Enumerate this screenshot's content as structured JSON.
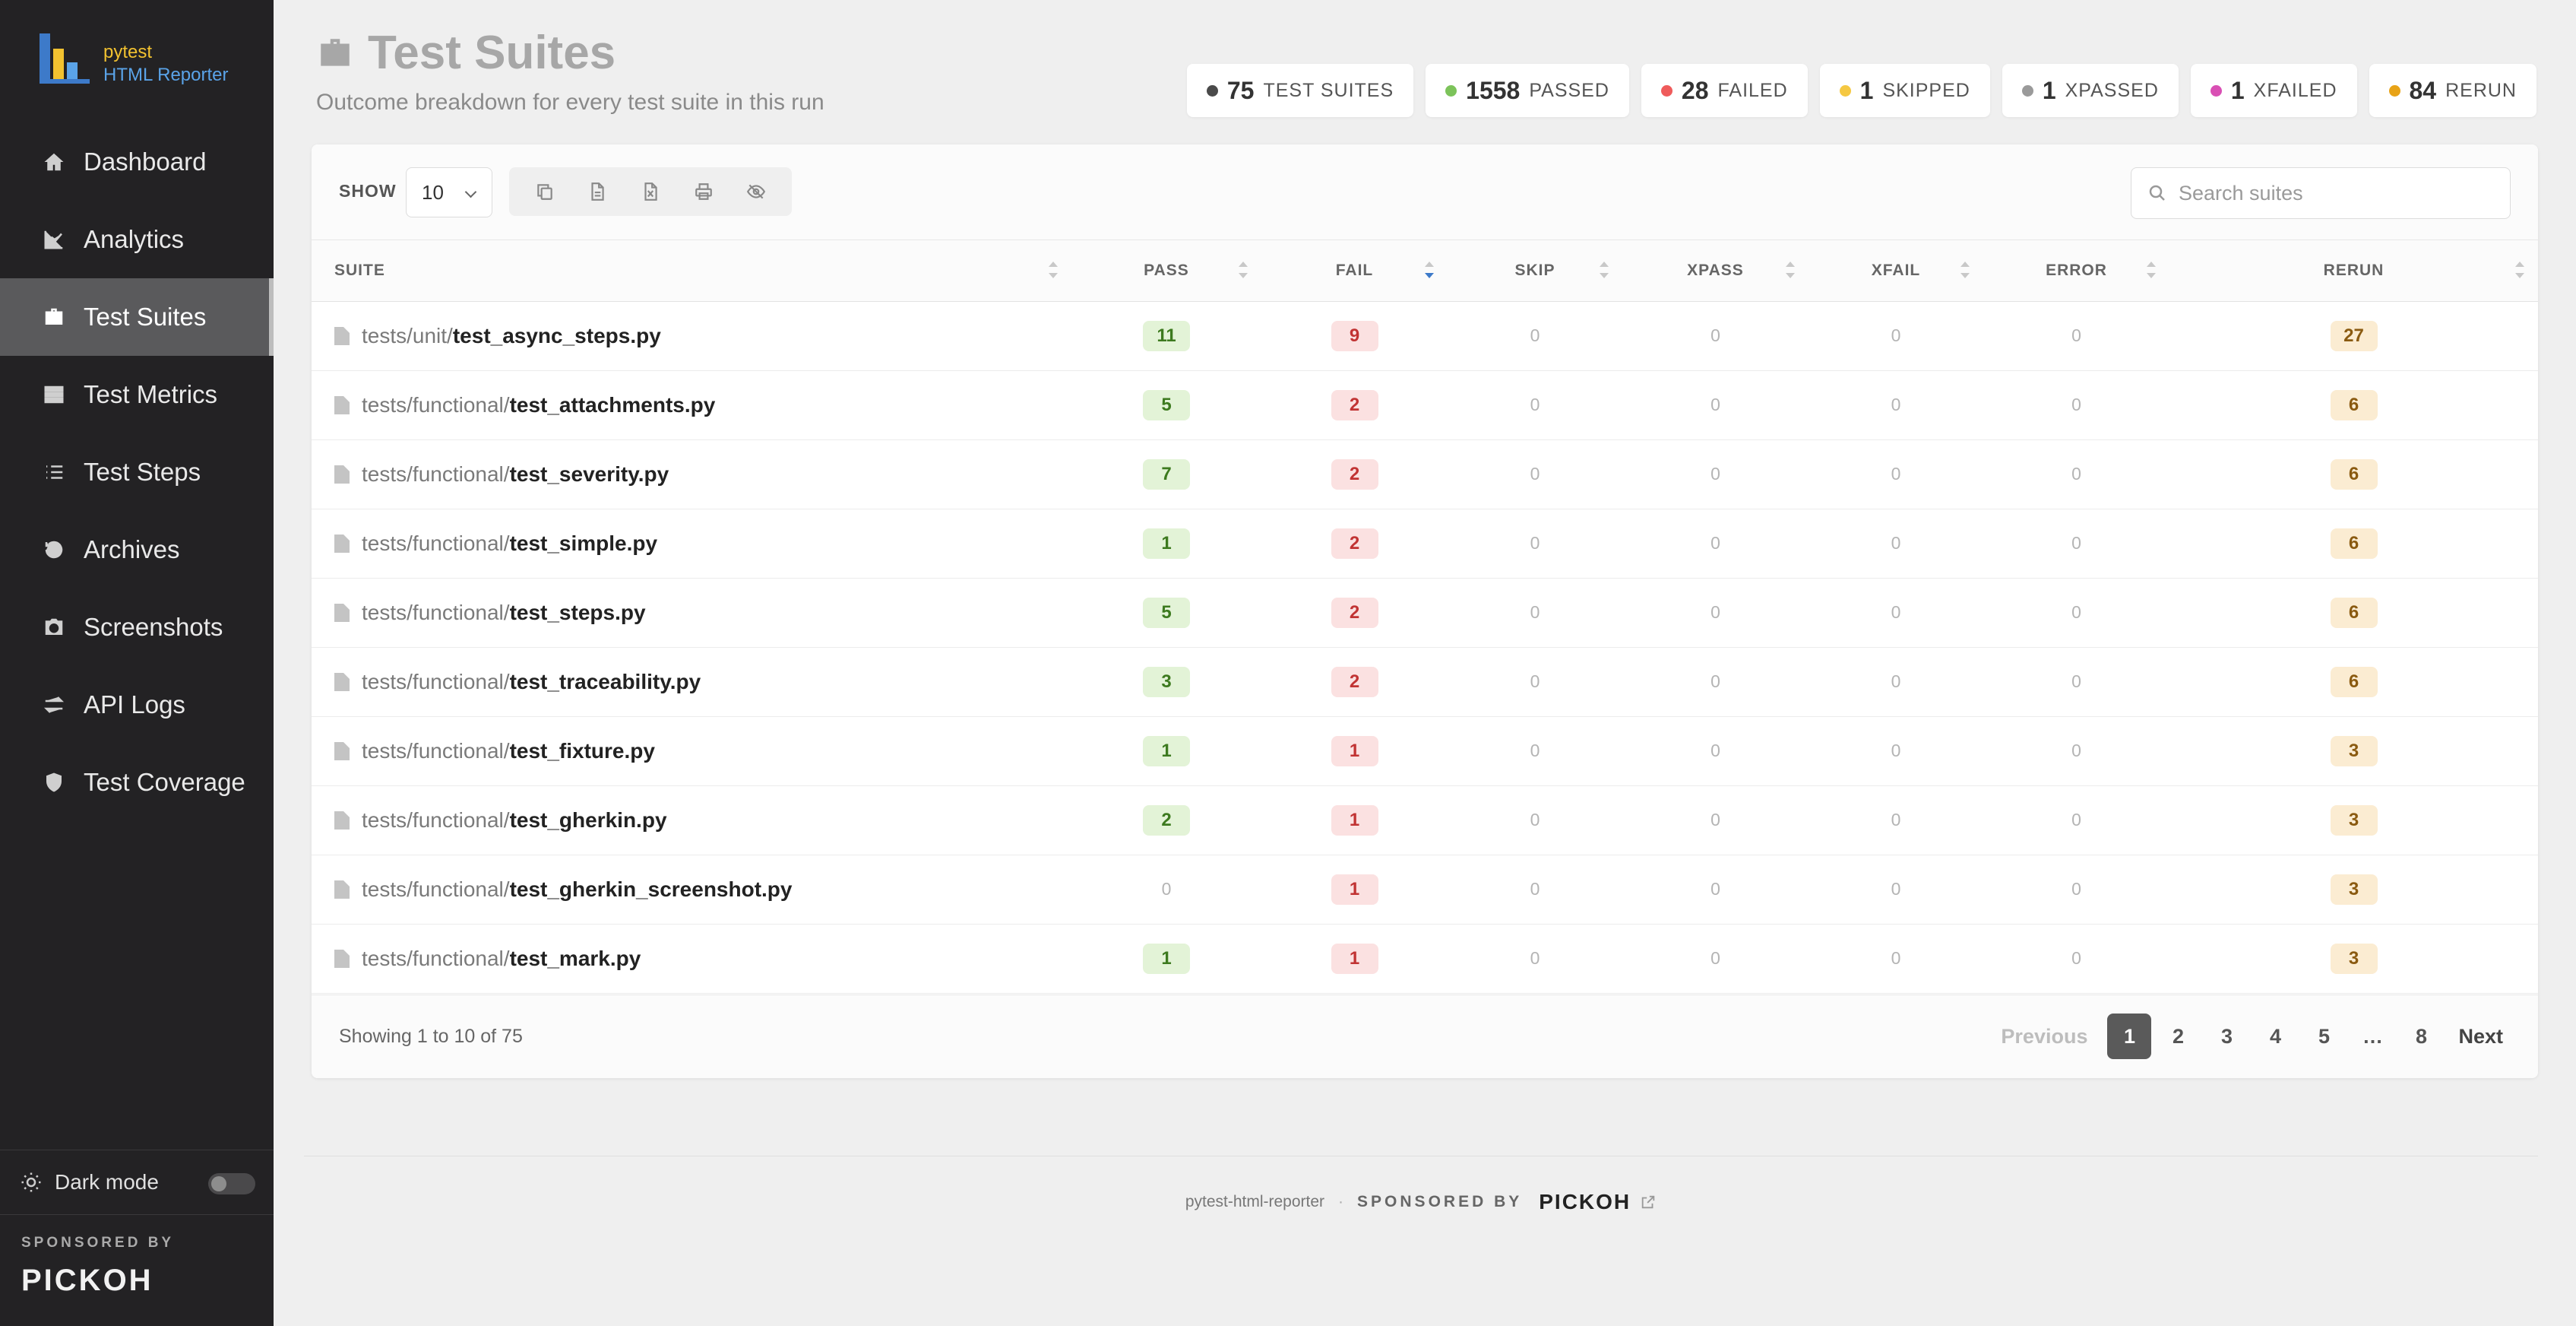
{
  "logo": {
    "line1": "pytest",
    "line2": "HTML Reporter"
  },
  "sidebar": {
    "items": [
      {
        "label": "Dashboard",
        "icon": "home-icon"
      },
      {
        "label": "Analytics",
        "icon": "chart-line-icon"
      },
      {
        "label": "Test Suites",
        "icon": "briefcase-icon",
        "active": true
      },
      {
        "label": "Test Metrics",
        "icon": "server-icon"
      },
      {
        "label": "Test Steps",
        "icon": "list-icon"
      },
      {
        "label": "Archives",
        "icon": "history-icon"
      },
      {
        "label": "Screenshots",
        "icon": "camera-icon"
      },
      {
        "label": "API Logs",
        "icon": "exchange-icon"
      },
      {
        "label": "Test Coverage",
        "icon": "shield-icon"
      }
    ],
    "dark_mode_label": "Dark mode",
    "sponsored_label": "SPONSORED BY",
    "sponsor_brand": "PICKOH"
  },
  "header": {
    "title": "Test Suites",
    "subtitle": "Outcome breakdown for every test suite in this run"
  },
  "stats": [
    {
      "num": "75",
      "label": "TEST SUITES",
      "color": "#4a4a4a"
    },
    {
      "num": "1558",
      "label": "PASSED",
      "color": "#7cc35a"
    },
    {
      "num": "28",
      "label": "FAILED",
      "color": "#ef5b5b"
    },
    {
      "num": "1",
      "label": "SKIPPED",
      "color": "#f5c842"
    },
    {
      "num": "1",
      "label": "XPASSED",
      "color": "#9a9a9a"
    },
    {
      "num": "1",
      "label": "XFAILED",
      "color": "#d94fb4"
    },
    {
      "num": "84",
      "label": "RERUN",
      "color": "#e8a317"
    }
  ],
  "toolbar": {
    "show_label": "SHOW",
    "page_size": "10",
    "search_placeholder": "Search suites"
  },
  "table": {
    "columns": [
      "SUITE",
      "PASS",
      "FAIL",
      "SKIP",
      "XPASS",
      "XFAIL",
      "ERROR",
      "RERUN"
    ],
    "rows": [
      {
        "path": "tests/unit/",
        "file": "test_async_steps.py",
        "pass": "11",
        "fail": "9",
        "skip": "0",
        "xpass": "0",
        "xfail": "0",
        "error": "0",
        "rerun": "27"
      },
      {
        "path": "tests/functional/",
        "file": "test_attachments.py",
        "pass": "5",
        "fail": "2",
        "skip": "0",
        "xpass": "0",
        "xfail": "0",
        "error": "0",
        "rerun": "6"
      },
      {
        "path": "tests/functional/",
        "file": "test_severity.py",
        "pass": "7",
        "fail": "2",
        "skip": "0",
        "xpass": "0",
        "xfail": "0",
        "error": "0",
        "rerun": "6"
      },
      {
        "path": "tests/functional/",
        "file": "test_simple.py",
        "pass": "1",
        "fail": "2",
        "skip": "0",
        "xpass": "0",
        "xfail": "0",
        "error": "0",
        "rerun": "6"
      },
      {
        "path": "tests/functional/",
        "file": "test_steps.py",
        "pass": "5",
        "fail": "2",
        "skip": "0",
        "xpass": "0",
        "xfail": "0",
        "error": "0",
        "rerun": "6"
      },
      {
        "path": "tests/functional/",
        "file": "test_traceability.py",
        "pass": "3",
        "fail": "2",
        "skip": "0",
        "xpass": "0",
        "xfail": "0",
        "error": "0",
        "rerun": "6"
      },
      {
        "path": "tests/functional/",
        "file": "test_fixture.py",
        "pass": "1",
        "fail": "1",
        "skip": "0",
        "xpass": "0",
        "xfail": "0",
        "error": "0",
        "rerun": "3"
      },
      {
        "path": "tests/functional/",
        "file": "test_gherkin.py",
        "pass": "2",
        "fail": "1",
        "skip": "0",
        "xpass": "0",
        "xfail": "0",
        "error": "0",
        "rerun": "3"
      },
      {
        "path": "tests/functional/",
        "file": "test_gherkin_screenshot.py",
        "pass": "0",
        "fail": "1",
        "skip": "0",
        "xpass": "0",
        "xfail": "0",
        "error": "0",
        "rerun": "3"
      },
      {
        "path": "tests/functional/",
        "file": "test_mark.py",
        "pass": "1",
        "fail": "1",
        "skip": "0",
        "xpass": "0",
        "xfail": "0",
        "error": "0",
        "rerun": "3"
      }
    ]
  },
  "pagination": {
    "showing": "Showing 1 to 10 of 75",
    "prev": "Previous",
    "pages": [
      "1",
      "2",
      "3",
      "4",
      "5",
      "…",
      "8"
    ],
    "current": "1",
    "next": "Next"
  },
  "footer": {
    "name": "pytest-html-reporter",
    "separator": "·",
    "sponsored_label": "SPONSORED BY",
    "brand": "PICKOH"
  }
}
